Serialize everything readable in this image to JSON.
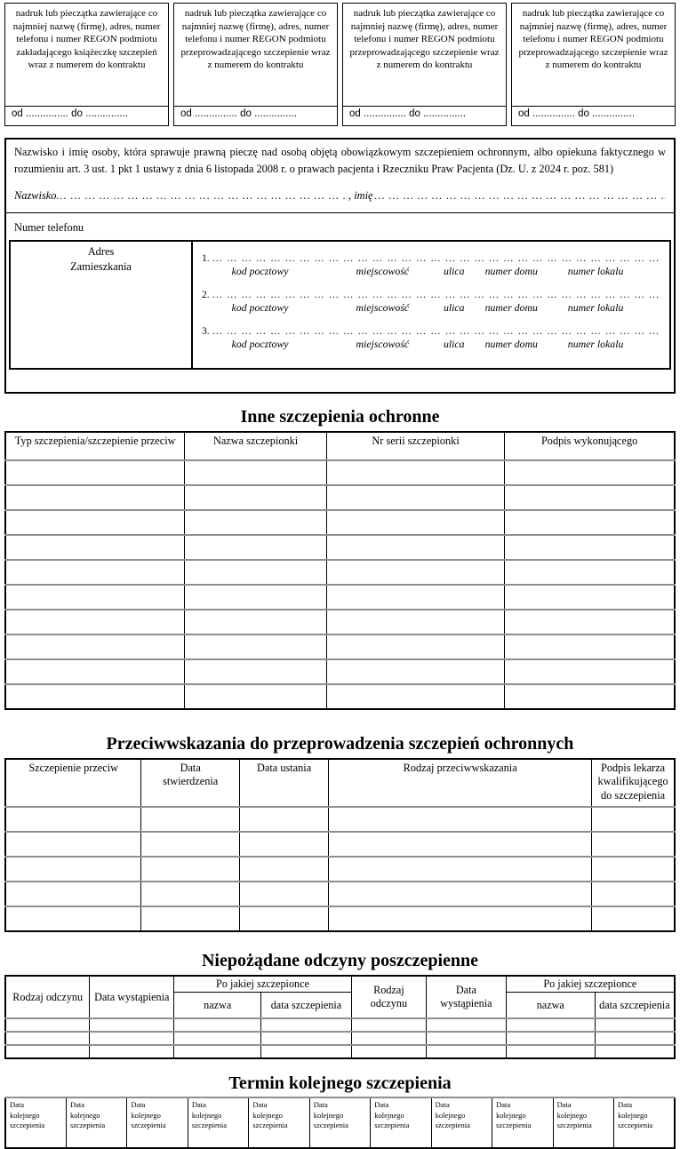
{
  "colors": {
    "paper": "#ffffff",
    "ink": "#000000",
    "row_line_gray": "#8f8f8f"
  },
  "fills": {
    "dots": "… … … … … … … … … … … … … … … … … … … … … … … … … … … … … … … … … … … … … … … … … … … … … … … …"
  },
  "stamp_boxes": [
    {
      "text": "nadruk lub pieczątka zawierające co najmniej nazwę (firmę), adres, numer telefonu i numer REGON podmiotu zakładającego książeczkę szczepień wraz z numerem do kontraktu",
      "od_do": "od ............... do ..............."
    },
    {
      "text": "nadruk lub pieczątka zawierające co najmniej nazwę (firmę), adres, numer telefonu i numer REGON podmiotu przeprowadzającego szczepienie wraz z numerem do kontraktu",
      "od_do": "od ............... do ..............."
    },
    {
      "text": "nadruk lub pieczątka zawierające co najmniej nazwę (firmę), adres, numer telefonu i numer REGON podmiotu przeprowadzającego szczepienie wraz z numerem do kontraktu",
      "od_do": "od ............... do ..............."
    },
    {
      "text": "nadruk lub pieczątka zawierające co najmniej nazwę (firmę), adres, numer telefonu i numer REGON podmiotu przeprowadzającego szczepienie wraz z numerem do kontraktu",
      "od_do": "od ............... do ..............."
    }
  ],
  "guardian": {
    "paragraph": "Nazwisko i imię osoby, która sprawuje prawną pieczę nad osobą objętą obowiązkowym szczepieniem ochronnym, albo opiekuna faktycznego w rozumieniu art. 3 ust. 1 pkt 1 ustawy z dnia 6 listopada 2008 r. o prawach pacjenta i Rzeczniku Praw Pacjenta (Dz. U. z 2024 r. poz. 581)",
    "surname_label": "Nazwisko",
    "name_label": ", imię",
    "phone_label": "Numer telefonu",
    "address_label": "Adres\nZamieszkania",
    "address_lines": [
      {
        "num": "1."
      },
      {
        "num": "2."
      },
      {
        "num": "3."
      }
    ],
    "address_col_labels": [
      "kod pocztowy",
      "miejscowość",
      "ulica",
      "numer domu",
      "numer lokalu"
    ]
  },
  "other_vaccinations": {
    "title": "Inne szczepienia ochronne",
    "headers": [
      "Typ szczepienia/szczepienie przeciw",
      "Nazwa szczepionki",
      "Nr serii szczepionki",
      "Podpis wykonującego"
    ],
    "empty_rows": 10
  },
  "contraindications": {
    "title": "Przeciwwskazania do przeprowadzenia szczepień ochronnych",
    "headers": [
      "Szczepienie przeciw",
      "Data stwierdzenia",
      "Data ustania",
      "Rodzaj przeciwwskazania",
      "Podpis lekarza kwalifikującego do szczepienia"
    ],
    "empty_rows": 5
  },
  "adverse_reactions": {
    "title": "Niepożądane odczyny poszczepienne",
    "reaction_type": "Rodzaj odczynu",
    "occurrence_date": "Data wystąpienia",
    "after_vaccine": "Po jakiej szczepionce",
    "vaccine_name": "nazwa",
    "vaccination_date": "data szczepienia",
    "empty_rows": 3
  },
  "next_vaccination": {
    "title": "Termin kolejnego szczepienia",
    "cell_lines": [
      "Data",
      "kolejnego",
      "szczepienia"
    ],
    "cells": 11
  }
}
